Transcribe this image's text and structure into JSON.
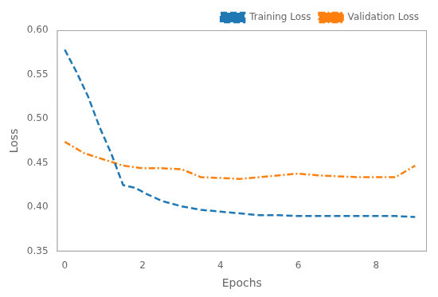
{
  "chart_data": {
    "type": "line",
    "x_label": "Epochs",
    "y_label": "Loss",
    "series": [
      {
        "name": "Training Loss",
        "color": "#1f77b4",
        "line_style": "dashed",
        "x": [
          0,
          0.3,
          0.6,
          0.9,
          1.2,
          1.5,
          1.8,
          2.1,
          2.5,
          3.0,
          3.5,
          4.0,
          4.5,
          5.0,
          5.5,
          6.0,
          6.5,
          7.0,
          7.5,
          8.0,
          8.5,
          9.0
        ],
        "values": [
          0.578,
          0.553,
          0.525,
          0.49,
          0.46,
          0.425,
          0.422,
          0.415,
          0.407,
          0.401,
          0.397,
          0.395,
          0.393,
          0.391,
          0.391,
          0.39,
          0.39,
          0.39,
          0.39,
          0.39,
          0.39,
          0.389
        ]
      },
      {
        "name": "Validation Loss",
        "color": "#ff7f0e",
        "line_style": "dashdot",
        "x": [
          0,
          0.5,
          1.0,
          1.5,
          2.0,
          2.5,
          3.0,
          3.5,
          4.0,
          4.5,
          5.0,
          5.5,
          6.0,
          6.5,
          7.0,
          7.5,
          8.0,
          8.5,
          9.0
        ],
        "values": [
          0.474,
          0.461,
          0.454,
          0.447,
          0.444,
          0.444,
          0.443,
          0.434,
          0.433,
          0.432,
          0.434,
          0.436,
          0.438,
          0.436,
          0.435,
          0.434,
          0.434,
          0.434,
          0.447
        ]
      }
    ],
    "xlim": [
      -0.2,
      9.3
    ],
    "ylim": [
      0.35,
      0.6
    ],
    "xticks": [
      0,
      2,
      4,
      6,
      8
    ],
    "yticks": [
      0.35,
      {
        "value": 0.4,
        "label": "0.40"
      },
      0.45,
      {
        "value": 0.5,
        "label": "0.50"
      },
      0.55,
      {
        "value": 0.6,
        "label": "0.60"
      }
    ],
    "legend": "upper right",
    "grid": false
  }
}
